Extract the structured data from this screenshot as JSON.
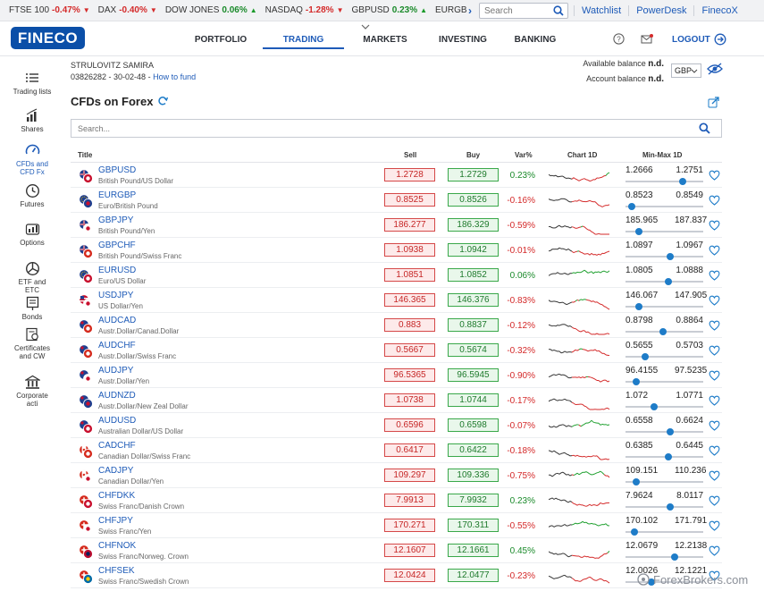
{
  "ticker": {
    "items": [
      {
        "name": "FTSE 100",
        "value": "-0.47%",
        "dir": "down"
      },
      {
        "name": "DAX",
        "value": "-0.40%",
        "dir": "down"
      },
      {
        "name": "DOW JONES",
        "value": "0.06%",
        "dir": "up"
      },
      {
        "name": "NASDAQ",
        "value": "-1.28%",
        "dir": "down"
      },
      {
        "name": "GBPUSD",
        "value": "0.23%",
        "dir": "up"
      },
      {
        "name": "EURGBP",
        "value": "-0.16%",
        "dir": "down"
      }
    ],
    "search_placeholder": "Search",
    "links": [
      "Watchlist",
      "PowerDesk",
      "FinecoX"
    ]
  },
  "header": {
    "logo": "FINECO",
    "nav": [
      "PORTFOLIO",
      "TRADING",
      "MARKETS",
      "INVESTING",
      "BANKING"
    ],
    "active_nav": "TRADING",
    "logout": "LOGOUT"
  },
  "sidebar": {
    "items": [
      {
        "label": "Trading lists",
        "icon": "list-icon"
      },
      {
        "label": "Shares",
        "icon": "bar-chart-icon"
      },
      {
        "label": "CFDs and CFD Fx",
        "icon": "gauge-icon",
        "active": true
      },
      {
        "label": "Futures",
        "icon": "clock-icon"
      },
      {
        "label": "Options",
        "icon": "options-icon"
      },
      {
        "label": "ETF and ETC",
        "icon": "pie-chart-icon"
      },
      {
        "label": "Bonds",
        "icon": "document-icon"
      },
      {
        "label": "Certificates and CW",
        "icon": "certificate-icon"
      },
      {
        "label": "Corporate acti",
        "icon": "bank-icon"
      }
    ]
  },
  "account": {
    "name": "STRULOVITZ SAMIRA",
    "number": "03826282 - 30-02-48 -",
    "fund_link": "How to fund",
    "available_label": "Available balance",
    "available_value": "n.d.",
    "account_label": "Account balance",
    "account_value": "n.d.",
    "currency": "GBP"
  },
  "page": {
    "title": "CFDs on Forex",
    "search_placeholder": "Search..."
  },
  "table": {
    "headers": {
      "title": "Title",
      "sell": "Sell",
      "buy": "Buy",
      "var": "Var%",
      "chart": "Chart 1D",
      "minmax": "Min-Max 1D"
    },
    "rows": [
      {
        "sym": "GBPUSD",
        "desc": "British Pound/US Dollar",
        "sell": "1.2728",
        "buy": "1.2729",
        "var": "0.23%",
        "min": "1.2666",
        "max": "1.2751",
        "pos": 0.73,
        "f1": "#1f3f8f",
        "f2": "#c8102e",
        "f2b": "#ffffff",
        "trend": "up"
      },
      {
        "sym": "EURGBP",
        "desc": "Euro/British Pound",
        "sell": "0.8525",
        "buy": "0.8526",
        "var": "-0.16%",
        "min": "0.8523",
        "max": "0.8549",
        "pos": 0.08,
        "f1": "#1f3f8f",
        "f2": "#1f3f8f",
        "f2b": "#c8102e",
        "trend": "down"
      },
      {
        "sym": "GBPJPY",
        "desc": "British Pound/Yen",
        "sell": "186.277",
        "buy": "186.329",
        "var": "-0.59%",
        "min": "185.965",
        "max": "187.837",
        "pos": 0.17,
        "f1": "#1f3f8f",
        "f2": "#ffffff",
        "f2b": "#c8102e",
        "trend": "down"
      },
      {
        "sym": "GBPCHF",
        "desc": "British Pound/Swiss Franc",
        "sell": "1.0938",
        "buy": "1.0942",
        "var": "-0.01%",
        "min": "1.0897",
        "max": "1.0967",
        "pos": 0.58,
        "f1": "#1f3f8f",
        "f2": "#d52b1e",
        "f2b": "#ffffff",
        "trend": "mixed"
      },
      {
        "sym": "EURUSD",
        "desc": "Euro/US Dollar",
        "sell": "1.0851",
        "buy": "1.0852",
        "var": "0.06%",
        "min": "1.0805",
        "max": "1.0888",
        "pos": 0.55,
        "f1": "#1f3f8f",
        "f2": "#c8102e",
        "f2b": "#ffffff",
        "trend": "mixed"
      },
      {
        "sym": "USDJPY",
        "desc": "US Dollar/Yen",
        "sell": "146.365",
        "buy": "146.376",
        "var": "-0.83%",
        "min": "146.067",
        "max": "147.905",
        "pos": 0.17,
        "f1": "#c8102e",
        "f2": "#ffffff",
        "f2b": "#c8102e",
        "trend": "down"
      },
      {
        "sym": "AUDCAD",
        "desc": "Austr.Dollar/Canad.Dollar",
        "sell": "0.883",
        "buy": "0.8837",
        "var": "-0.12%",
        "min": "0.8798",
        "max": "0.8864",
        "pos": 0.48,
        "f1": "#1f3f8f",
        "f2": "#d52b1e",
        "f2b": "#ffffff",
        "trend": "down"
      },
      {
        "sym": "AUDCHF",
        "desc": "Austr.Dollar/Swiss Franc",
        "sell": "0.5667",
        "buy": "0.5674",
        "var": "-0.32%",
        "min": "0.5655",
        "max": "0.5703",
        "pos": 0.25,
        "f1": "#1f3f8f",
        "f2": "#d52b1e",
        "f2b": "#ffffff",
        "trend": "down"
      },
      {
        "sym": "AUDJPY",
        "desc": "Austr.Dollar/Yen",
        "sell": "96.5365",
        "buy": "96.5945",
        "var": "-0.90%",
        "min": "96.4155",
        "max": "97.5235",
        "pos": 0.14,
        "f1": "#1f3f8f",
        "f2": "#ffffff",
        "f2b": "#c8102e",
        "trend": "down"
      },
      {
        "sym": "AUDNZD",
        "desc": "Austr.Dollar/New Zeal Dollar",
        "sell": "1.0738",
        "buy": "1.0744",
        "var": "-0.17%",
        "min": "1.072",
        "max": "1.0771",
        "pos": 0.37,
        "f1": "#1f3f8f",
        "f2": "#1f3f8f",
        "f2b": "#c8102e",
        "trend": "down"
      },
      {
        "sym": "AUDUSD",
        "desc": "Australian Dollar/US Dollar",
        "sell": "0.6596",
        "buy": "0.6598",
        "var": "-0.07%",
        "min": "0.6558",
        "max": "0.6624",
        "pos": 0.58,
        "f1": "#1f3f8f",
        "f2": "#c8102e",
        "f2b": "#ffffff",
        "trend": "mixed"
      },
      {
        "sym": "CADCHF",
        "desc": "Canadian Dollar/Swiss Franc",
        "sell": "0.6417",
        "buy": "0.6422",
        "var": "-0.18%",
        "min": "0.6385",
        "max": "0.6445",
        "pos": 0.55,
        "f1": "#d52b1e",
        "f2": "#d52b1e",
        "f2b": "#ffffff",
        "trend": "down"
      },
      {
        "sym": "CADJPY",
        "desc": "Canadian Dollar/Yen",
        "sell": "109.297",
        "buy": "109.336",
        "var": "-0.75%",
        "min": "109.151",
        "max": "110.236",
        "pos": 0.14,
        "f1": "#d52b1e",
        "f2": "#ffffff",
        "f2b": "#c8102e",
        "trend": "down"
      },
      {
        "sym": "CHFDKK",
        "desc": "Swiss Franc/Danish Crown",
        "sell": "7.9913",
        "buy": "7.9932",
        "var": "0.23%",
        "min": "7.9624",
        "max": "8.0117",
        "pos": 0.58,
        "f1": "#d52b1e",
        "f2": "#c8102e",
        "f2b": "#ffffff",
        "trend": "up"
      },
      {
        "sym": "CHFJPY",
        "desc": "Swiss Franc/Yen",
        "sell": "170.271",
        "buy": "170.311",
        "var": "-0.55%",
        "min": "170.102",
        "max": "171.791",
        "pos": 0.12,
        "f1": "#d52b1e",
        "f2": "#ffffff",
        "f2b": "#c8102e",
        "trend": "down"
      },
      {
        "sym": "CHFNOK",
        "desc": "Swiss Franc/Norweg. Crown",
        "sell": "12.1607",
        "buy": "12.1661",
        "var": "0.45%",
        "min": "12.0679",
        "max": "12.2138",
        "pos": 0.63,
        "f1": "#d52b1e",
        "f2": "#ba0c2f",
        "f2b": "#00205b",
        "trend": "up"
      },
      {
        "sym": "CHFSEK",
        "desc": "Swiss Franc/Swedish Crown",
        "sell": "12.0424",
        "buy": "12.0477",
        "var": "-0.23%",
        "min": "12.0026",
        "max": "12.1221",
        "pos": 0.33,
        "f1": "#d52b1e",
        "f2": "#006aa7",
        "f2b": "#fecc00",
        "trend": "down"
      }
    ]
  },
  "watermark": "ForexBrokers.com",
  "colors": {
    "accent": "#1e5bb8",
    "sell_red": "#c62626",
    "buy_green": "#1e7a2c"
  }
}
